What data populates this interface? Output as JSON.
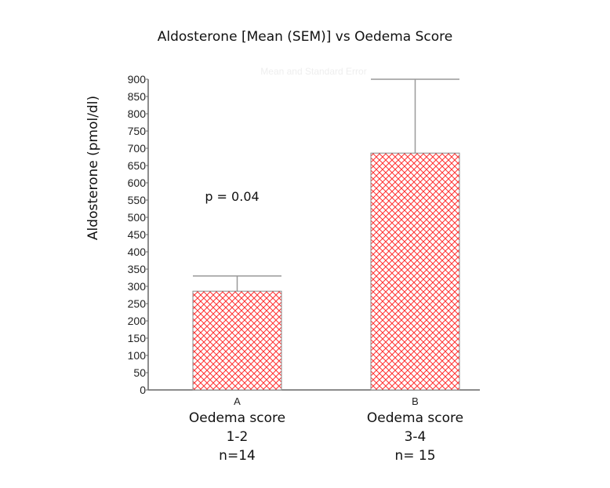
{
  "chart_data": {
    "type": "bar",
    "title": "Aldosterone [Mean  (SEM)] vs  Oedema Score",
    "subtitle": "Mean and Standard Error",
    "ylabel": "Aldosterone (pmol/dl)",
    "xlabel": "",
    "ylim": [
      0,
      900
    ],
    "yticks": [
      0,
      50,
      100,
      150,
      200,
      250,
      300,
      350,
      400,
      450,
      500,
      550,
      600,
      650,
      700,
      750,
      800,
      850,
      900
    ],
    "categories": [
      "A",
      "B"
    ],
    "values": [
      286,
      686
    ],
    "error_upper": [
      330,
      900
    ],
    "group_labels": [
      [
        "Oedema score",
        "1-2",
        "n=14"
      ],
      [
        "Oedema score",
        "3-4",
        "n= 15"
      ]
    ],
    "annotation": "p = 0.04",
    "bar_color": "#ff2a2a",
    "grid": false
  }
}
